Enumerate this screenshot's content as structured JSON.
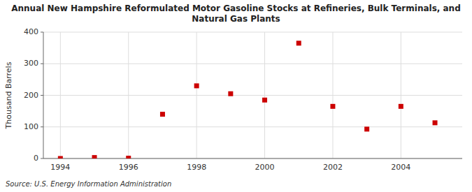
{
  "chart_data": {
    "type": "scatter",
    "title": "Annual New Hampshire Reformulated Motor Gasoline Stocks at Refineries, Bulk Terminals, and\nNatural Gas Plants",
    "ylabel": "Thousand Barrels",
    "source": "Source: U.S. Energy Information Administration",
    "x": [
      1994,
      1995,
      1996,
      1997,
      1998,
      1999,
      2000,
      2001,
      2002,
      2003,
      2004,
      2005
    ],
    "values": [
      0,
      3,
      1,
      140,
      230,
      205,
      185,
      365,
      165,
      93,
      165,
      113
    ],
    "xlim": [
      1993.5,
      2005.8
    ],
    "ylim": [
      0,
      400
    ],
    "xticks": [
      1994,
      1996,
      1998,
      2000,
      2002,
      2004
    ],
    "yticks": [
      0,
      100,
      200,
      300,
      400
    ],
    "color": "#cc0000",
    "marker": "square",
    "grid": true
  }
}
